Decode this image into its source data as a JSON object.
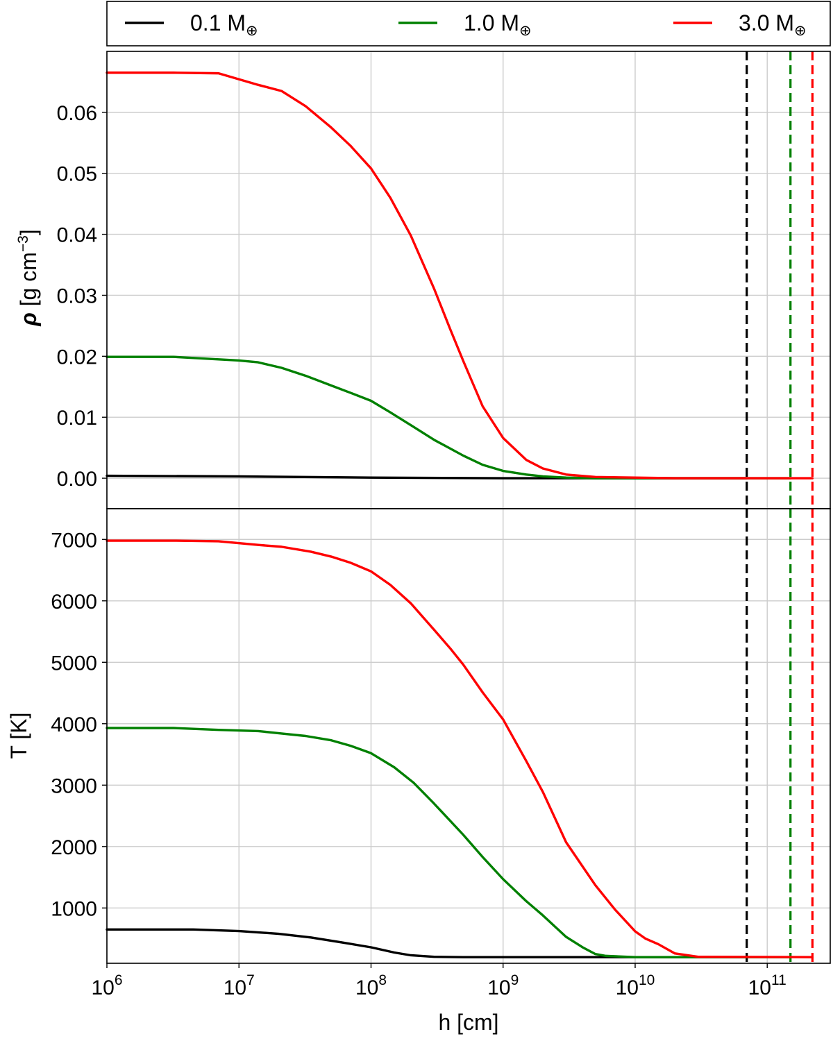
{
  "legend": [
    {
      "label": "0.1 M",
      "sub": "⊕",
      "color": "#000000"
    },
    {
      "label": "1.0 M",
      "sub": "⊕",
      "color": "#008000"
    },
    {
      "label": "3.0 M",
      "sub": "⊕",
      "color": "#ff0000"
    }
  ],
  "chart_data": [
    {
      "type": "line",
      "panel": "top",
      "xscale": "log",
      "xlim": [
        1000000,
        300000000000
      ],
      "ylim": [
        -0.005,
        0.07
      ],
      "ylabel": "ρ [g cm⁻³]",
      "ylabel_parts": {
        "symbol": "ρ",
        "text": " [g cm",
        "exp": "−3",
        "close": "]"
      },
      "xlabel": "",
      "yticks": [
        0.0,
        0.01,
        0.02,
        0.03,
        0.04,
        0.05,
        0.06
      ],
      "ytick_labels": [
        "0.00",
        "0.01",
        "0.02",
        "0.03",
        "0.04",
        "0.05",
        "0.06"
      ],
      "grid": true,
      "series": [
        {
          "name": "0.1 M⊕",
          "color": "#000000",
          "x": [
            1000000.0,
            10000000.0,
            100000000.0,
            1000000000.0,
            10000000000.0,
            70000000000.0
          ],
          "y": [
            0.0004,
            0.0003,
            0.0001,
            0.0,
            0.0,
            0.0
          ]
        },
        {
          "name": "1.0 M⊕",
          "color": "#008000",
          "x": [
            1000000.0,
            3200000.0,
            10000000.0,
            14000000.0,
            21000000.0,
            32000000.0,
            50000000.0,
            70000000.0,
            100000000.0,
            140000000.0,
            200000000.0,
            300000000.0,
            500000000.0,
            700000000.0,
            1000000000.0,
            1500000000.0,
            2000000000.0,
            3000000000.0,
            5000000000.0,
            10000000000.0,
            150000000000.0
          ],
          "y": [
            0.0199,
            0.0199,
            0.0193,
            0.019,
            0.0181,
            0.0168,
            0.0152,
            0.014,
            0.0127,
            0.0108,
            0.0087,
            0.0063,
            0.0037,
            0.0022,
            0.0012,
            0.0006,
            0.0003,
            0.0001,
            0.0,
            0.0,
            0.0
          ]
        },
        {
          "name": "3.0 M⊕",
          "color": "#ff0000",
          "x": [
            1000000.0,
            3200000.0,
            7000000.0,
            14000000.0,
            21000000.0,
            32000000.0,
            50000000.0,
            70000000.0,
            100000000.0,
            140000000.0,
            200000000.0,
            300000000.0,
            400000000.0,
            500000000.0,
            700000000.0,
            1000000000.0,
            1500000000.0,
            2000000000.0,
            3000000000.0,
            5000000000.0,
            10000000000.0,
            20000000000.0,
            220000000000.0
          ],
          "y": [
            0.0665,
            0.0665,
            0.0664,
            0.0645,
            0.0635,
            0.061,
            0.0575,
            0.0545,
            0.0508,
            0.046,
            0.0398,
            0.0311,
            0.0243,
            0.0192,
            0.0118,
            0.0066,
            0.003,
            0.0016,
            0.0006,
            0.0002,
            0.0001,
            0.0,
            0.0
          ]
        }
      ],
      "reference_lines": [
        {
          "series": "0.1 M⊕",
          "x": 70000000000,
          "color": "#000000",
          "style": "dashed"
        },
        {
          "series": "1.0 M⊕",
          "x": 150000000000,
          "color": "#008000",
          "style": "dashed"
        },
        {
          "series": "3.0 M⊕",
          "x": 220000000000,
          "color": "#ff0000",
          "style": "dashed"
        }
      ]
    },
    {
      "type": "line",
      "panel": "bottom",
      "xscale": "log",
      "xlim": [
        1000000,
        300000000000
      ],
      "ylim": [
        100,
        7500
      ],
      "ylabel": "T [K]",
      "xlabel": "h [cm]",
      "xticks": [
        1000000.0,
        10000000.0,
        100000000.0,
        1000000000.0,
        10000000000.0,
        100000000000.0
      ],
      "xtick_labels": [
        {
          "base": "10",
          "exp": "6"
        },
        {
          "base": "10",
          "exp": "7"
        },
        {
          "base": "10",
          "exp": "8"
        },
        {
          "base": "10",
          "exp": "9"
        },
        {
          "base": "10",
          "exp": "10"
        },
        {
          "base": "10",
          "exp": "11"
        }
      ],
      "yticks": [
        1000,
        2000,
        3000,
        4000,
        5000,
        6000,
        7000
      ],
      "ytick_labels": [
        "1000",
        "2000",
        "3000",
        "4000",
        "5000",
        "6000",
        "7000"
      ],
      "grid": true,
      "series": [
        {
          "name": "0.1 M⊕",
          "color": "#000000",
          "x": [
            1000000.0,
            4500000.0,
            10000000.0,
            20000000.0,
            35000000.0,
            60000000.0,
            100000000.0,
            150000000.0,
            200000000.0,
            300000000.0,
            500000000.0,
            1000000000.0,
            70000000000.0
          ],
          "y": [
            650,
            650,
            625,
            580,
            520,
            440,
            360,
            275,
            230,
            205,
            200,
            200,
            200
          ]
        },
        {
          "name": "1.0 M⊕",
          "color": "#008000",
          "x": [
            1000000.0,
            3200000.0,
            7000000.0,
            14000000.0,
            21000000.0,
            32000000.0,
            50000000.0,
            70000000.0,
            100000000.0,
            150000000.0,
            210000000.0,
            300000000.0,
            500000000.0,
            700000000.0,
            1000000000.0,
            1500000000.0,
            2000000000.0,
            3000000000.0,
            4000000000.0,
            5000000000.0,
            6000000000.0,
            10000000000.0,
            150000000000.0
          ],
          "y": [
            3930,
            3930,
            3900,
            3880,
            3840,
            3800,
            3730,
            3640,
            3520,
            3290,
            3040,
            2700,
            2190,
            1830,
            1470,
            1110,
            880,
            530,
            360,
            250,
            220,
            200,
            200
          ]
        },
        {
          "name": "3.0 M⊕",
          "color": "#ff0000",
          "x": [
            1000000.0,
            3200000.0,
            7000000.0,
            14000000.0,
            21000000.0,
            35000000.0,
            50000000.0,
            70000000.0,
            100000000.0,
            140000000.0,
            200000000.0,
            300000000.0,
            400000000.0,
            500000000.0,
            700000000.0,
            1000000000.0,
            1500000000.0,
            2000000000.0,
            3000000000.0,
            5000000000.0,
            7000000000.0,
            10000000000.0,
            12000000000.0,
            15000000000.0,
            20000000000.0,
            30000000000.0,
            220000000000.0
          ],
          "y": [
            6980,
            6980,
            6970,
            6910,
            6880,
            6800,
            6720,
            6620,
            6480,
            6260,
            5960,
            5530,
            5220,
            4960,
            4510,
            4070,
            3390,
            2890,
            2070,
            1370,
            980,
            620,
            500,
            410,
            260,
            205,
            200
          ]
        }
      ],
      "reference_lines": [
        {
          "series": "0.1 M⊕",
          "x": 70000000000,
          "color": "#000000",
          "style": "dashed"
        },
        {
          "series": "1.0 M⊕",
          "x": 150000000000,
          "color": "#008000",
          "style": "dashed"
        },
        {
          "series": "3.0 M⊕",
          "x": 220000000000,
          "color": "#ff0000",
          "style": "dashed"
        }
      ]
    }
  ]
}
